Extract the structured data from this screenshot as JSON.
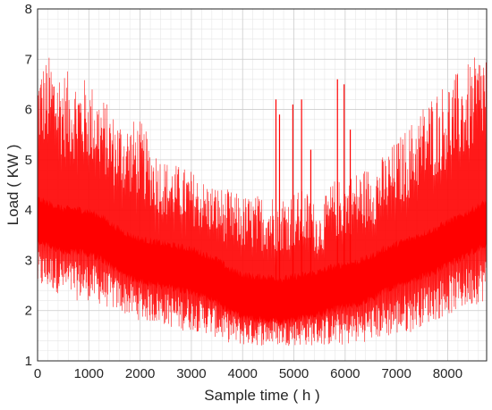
{
  "chart_data": {
    "type": "line",
    "title": "",
    "xlabel": "Sample time ( h )",
    "ylabel": "Load ( KW )",
    "xlim": [
      0,
      8760
    ],
    "ylim": [
      1,
      8
    ],
    "xticks": [
      0,
      1000,
      2000,
      3000,
      4000,
      5000,
      6000,
      7000,
      8000
    ],
    "yticks": [
      1,
      2,
      3,
      4,
      5,
      6,
      7,
      8
    ],
    "grid": true,
    "minor_grid": true,
    "legend": "none",
    "series_color": "#ff0000",
    "series": [
      {
        "envelope_x": [
          0,
          250,
          500,
          750,
          1000,
          1250,
          1500,
          1750,
          2000,
          2250,
          2500,
          2750,
          3000,
          3250,
          3500,
          3750,
          4000,
          4250,
          4500,
          4750,
          5000,
          5250,
          5500,
          5750,
          6000,
          6250,
          6500,
          6750,
          7000,
          7250,
          7500,
          7750,
          8000,
          8250,
          8500,
          8760
        ],
        "upper": [
          6.9,
          7.1,
          6.8,
          6.7,
          6.6,
          6.3,
          5.9,
          5.8,
          5.8,
          5.3,
          5.0,
          4.9,
          4.8,
          4.6,
          4.5,
          4.4,
          4.3,
          4.3,
          4.35,
          4.35,
          4.4,
          4.4,
          4.0,
          4.6,
          4.65,
          4.8,
          4.9,
          5.1,
          5.4,
          5.7,
          6.1,
          6.4,
          6.6,
          6.8,
          7.0,
          7.4
        ],
        "center": [
          3.8,
          3.7,
          3.6,
          3.6,
          3.55,
          3.45,
          3.25,
          3.1,
          3.0,
          2.95,
          2.9,
          2.85,
          2.8,
          2.7,
          2.6,
          2.4,
          2.3,
          2.25,
          2.25,
          2.2,
          2.25,
          2.3,
          2.35,
          2.45,
          2.5,
          2.55,
          2.65,
          2.8,
          2.9,
          3.0,
          3.1,
          3.2,
          3.35,
          3.45,
          3.6,
          3.75
        ],
        "lower": [
          2.4,
          2.4,
          2.3,
          2.2,
          2.2,
          2.1,
          2.0,
          1.9,
          1.8,
          1.75,
          1.7,
          1.6,
          1.6,
          1.55,
          1.45,
          1.35,
          1.3,
          1.3,
          1.3,
          1.3,
          1.3,
          1.3,
          1.3,
          1.3,
          1.3,
          1.35,
          1.4,
          1.45,
          1.5,
          1.55,
          1.7,
          1.8,
          1.9,
          2.0,
          2.1,
          2.2
        ],
        "spikes": [
          {
            "x": 4650,
            "y": 6.2
          },
          {
            "x": 4720,
            "y": 5.9
          },
          {
            "x": 4980,
            "y": 6.1
          },
          {
            "x": 5150,
            "y": 6.2
          },
          {
            "x": 5330,
            "y": 5.2
          },
          {
            "x": 5850,
            "y": 6.6
          },
          {
            "x": 5980,
            "y": 6.5
          },
          {
            "x": 6100,
            "y": 5.6
          }
        ]
      }
    ]
  }
}
